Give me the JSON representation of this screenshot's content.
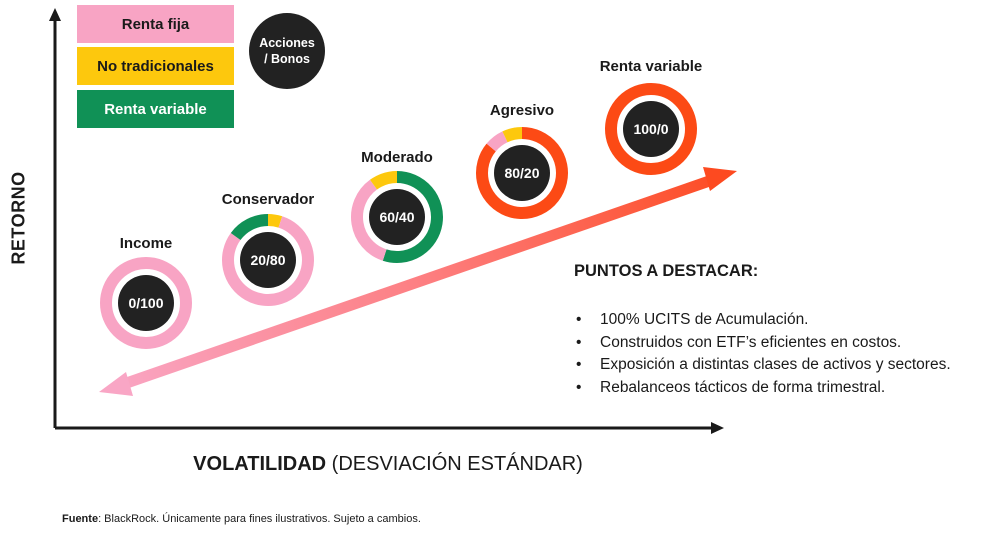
{
  "legend": {
    "items": [
      {
        "label": "Renta fija",
        "color": "#f8a4c4"
      },
      {
        "label": "No tradicionales",
        "color": "#fdc80d"
      },
      {
        "label": "Renta variable",
        "color": "#109156"
      }
    ],
    "circle_line1": "Acciones",
    "circle_line2": "/ Bonos"
  },
  "axes": {
    "ylabel": "RETORNO",
    "xlabel_bold": "VOLATILIDAD",
    "xlabel_rest": " (DESVIACIÓN ESTÁNDAR)"
  },
  "portfolios": [
    {
      "name": "Income",
      "ratio": "0/100",
      "segments": [
        {
          "kind": "fija",
          "share": 1.0
        }
      ]
    },
    {
      "name": "Conservador",
      "ratio": "20/80",
      "segments": [
        {
          "kind": "nt",
          "share": 0.05
        },
        {
          "kind": "fija",
          "share": 0.8
        },
        {
          "kind": "rv",
          "share": 0.15
        }
      ]
    },
    {
      "name": "Moderado",
      "ratio": "60/40",
      "segments": [
        {
          "kind": "rv",
          "share": 0.55
        },
        {
          "kind": "fija",
          "share": 0.35
        },
        {
          "kind": "nt",
          "share": 0.1
        }
      ]
    },
    {
      "name": "Agresivo",
      "ratio": "80/20",
      "segments": [
        {
          "kind": "orange",
          "share": 0.86
        },
        {
          "kind": "fija",
          "share": 0.07
        },
        {
          "kind": "nt",
          "share": 0.07
        }
      ]
    },
    {
      "name": "Renta variable",
      "ratio": "100/0",
      "segments": [
        {
          "kind": "orange",
          "share": 1.0
        }
      ]
    }
  ],
  "colors": {
    "fija": "#f8a4c4",
    "nt": "#fdc80d",
    "rv": "#109156",
    "orange": "#fc4a15",
    "center": "#222222",
    "axis": "#1a1a1a"
  },
  "highlights": {
    "title": "PUNTOS A DESTACAR:",
    "items": [
      "100% UCITS de Acumulación.",
      "Construidos con ETF’s eficientes en costos.",
      "Exposición a distintas clases de activos y sectores.",
      "Rebalanceos tácticos de forma trimestral."
    ]
  },
  "footnote": {
    "bold": "Fuente",
    "text": ": BlackRock. Únicamente para fines ilustrativos. Sujeto a cambios."
  }
}
